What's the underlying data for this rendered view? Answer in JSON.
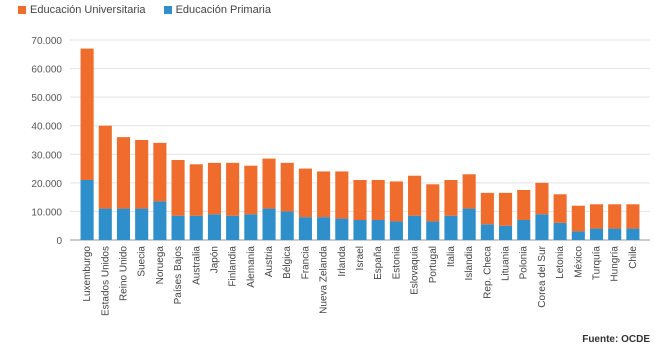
{
  "legend": {
    "items": [
      {
        "label": "Educación Universitaria",
        "color": "#ef6c2c"
      },
      {
        "label": "Educación Primaria",
        "color": "#2f8fcb"
      }
    ]
  },
  "source": "Fuente: OCDE",
  "chart_data": {
    "type": "bar",
    "stacked": true,
    "categories": [
      "Luxemburgo",
      "Estados Unidos",
      "Reino Unido",
      "Suecia",
      "Noruega",
      "Países Bajos",
      "Australia",
      "Japón",
      "Finlandia",
      "Alemania",
      "Austria",
      "Bélgica",
      "Francia",
      "Nueva Zelanda",
      "Irlanda",
      "Israel",
      "España",
      "Estonia",
      "Eslovaquia",
      "Portugal",
      "Italia",
      "Islandia",
      "Rep. Checa",
      "Lituania",
      "Polonia",
      "Corea del Sur",
      "Letonia",
      "México",
      "Turquía",
      "Hungría",
      "Chile"
    ],
    "series": [
      {
        "name": "Educación Primaria",
        "color": "#2f8fcb",
        "values": [
          21000,
          11000,
          11000,
          11000,
          13500,
          8500,
          8500,
          9000,
          8500,
          9000,
          11000,
          10000,
          8000,
          8000,
          7500,
          7000,
          7000,
          6500,
          8500,
          6500,
          8500,
          11000,
          5500,
          5000,
          7000,
          9000,
          6000,
          3000,
          4000,
          4000,
          4000
        ]
      },
      {
        "name": "Educación Universitaria",
        "color": "#ef6c2c",
        "values": [
          46000,
          29000,
          25000,
          24000,
          20500,
          19500,
          18000,
          18000,
          18500,
          17000,
          17500,
          17000,
          17000,
          16000,
          16500,
          14000,
          14000,
          14000,
          14000,
          13000,
          12500,
          12000,
          11000,
          11500,
          10500,
          11000,
          10000,
          9000,
          8500,
          8500,
          8500
        ]
      }
    ],
    "ylim": [
      0,
      70000
    ],
    "yticks": [
      "0",
      "10.000",
      "20.000",
      "30.000",
      "40.000",
      "50.000",
      "60.000",
      "70.000"
    ],
    "ytick_values": [
      0,
      10000,
      20000,
      30000,
      40000,
      50000,
      60000,
      70000
    ],
    "grid": "horizontal"
  }
}
